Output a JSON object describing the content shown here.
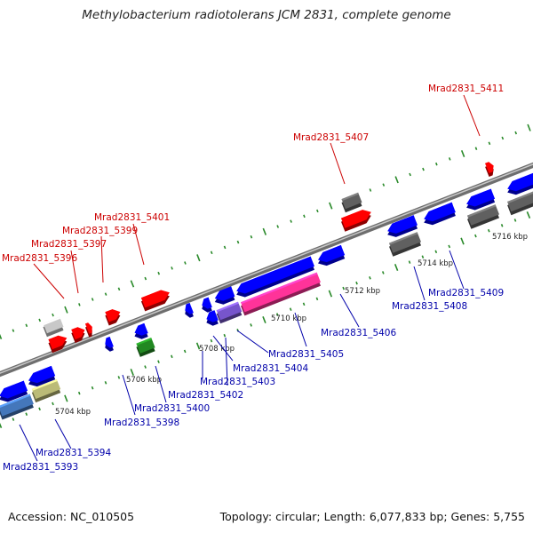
{
  "title": "Methylobacterium radiotolerans JCM 2831, complete genome",
  "footer": {
    "accession": "Accession: NC_010505",
    "stats": "Topology: circular; Length: 6,077,833 bp; Genes: 5,755"
  },
  "colors": {
    "forward_label": "#cc0000",
    "reverse_label": "#0000aa",
    "backbone": "#8a8a8a",
    "tick": "#2a8a2a"
  },
  "kbp_ticks": [
    "5704 kbp",
    "5706 kbp",
    "5708 kbp",
    "5710 kbp",
    "5712 kbp",
    "5714 kbp",
    "5716 kbp"
  ],
  "labels_top": [
    "Mrad2831_5396",
    "Mrad2831_5397",
    "Mrad2831_5399",
    "Mrad2831_5401",
    "Mrad2831_5407",
    "Mrad2831_5411"
  ],
  "labels_bottom": [
    "Mrad2831_5393",
    "Mrad2831_5394",
    "Mrad2831_5398",
    "Mrad2831_5400",
    "Mrad2831_5402",
    "Mrad2831_5403",
    "Mrad2831_5404",
    "Mrad2831_5405",
    "Mrad2831_5406",
    "Mrad2831_5408",
    "Mrad2831_5409"
  ]
}
